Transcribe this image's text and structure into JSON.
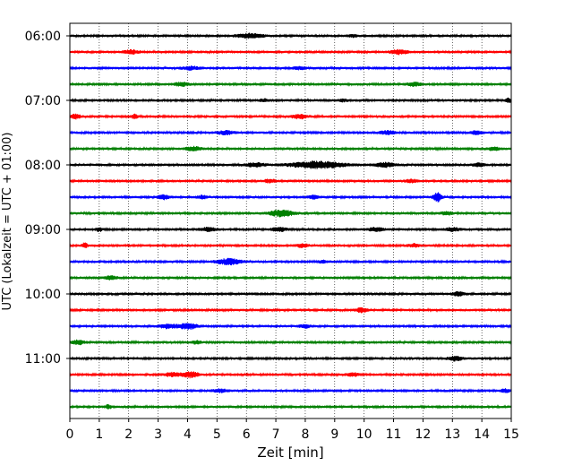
{
  "chart_data": {
    "type": "line",
    "title": "",
    "xlabel": "Zeit  [min]",
    "ylabel": "UTC (Lokalzeit = UTC + 01:00)",
    "xlim": [
      0,
      15
    ],
    "x_ticks": [
      "0",
      "1",
      "2",
      "3",
      "4",
      "5",
      "6",
      "7",
      "8",
      "9",
      "10",
      "11",
      "12",
      "13",
      "14",
      "15"
    ],
    "y_ticks": [
      "06:00",
      "07:00",
      "08:00",
      "09:00",
      "10:00",
      "11:00"
    ],
    "start_time": "06:00",
    "row_minutes": 15,
    "grid": "vertical dotted",
    "line_colors": [
      "#000000",
      "#ff0000",
      "#0000ff",
      "#008000"
    ],
    "rows": [
      {
        "time": "06:00",
        "color": "#000000",
        "events": [
          [
            6.1,
            0.9,
            2.2
          ],
          [
            9.6,
            0.3,
            1.2
          ]
        ]
      },
      {
        "time": "06:15",
        "color": "#ff0000",
        "events": [
          [
            2.1,
            0.5,
            2.0
          ],
          [
            11.2,
            0.6,
            2.2
          ]
        ]
      },
      {
        "time": "06:30",
        "color": "#0000ff",
        "events": [
          [
            4.1,
            0.6,
            1.6
          ],
          [
            7.8,
            0.4,
            1.3
          ]
        ]
      },
      {
        "time": "06:45",
        "color": "#008000",
        "events": [
          [
            3.8,
            0.5,
            1.8
          ],
          [
            11.7,
            0.5,
            1.8
          ]
        ]
      },
      {
        "time": "07:00",
        "color": "#000000",
        "events": [
          [
            6.6,
            0.3,
            1.2
          ],
          [
            9.3,
            0.3,
            1.2
          ],
          [
            14.9,
            0.2,
            2.0
          ]
        ]
      },
      {
        "time": "07:15",
        "color": "#ff0000",
        "events": [
          [
            0.2,
            0.3,
            2.5
          ],
          [
            2.2,
            0.2,
            2.0
          ],
          [
            7.8,
            0.5,
            2.2
          ]
        ]
      },
      {
        "time": "07:30",
        "color": "#0000ff",
        "events": [
          [
            5.3,
            0.5,
            2.0
          ],
          [
            10.8,
            0.5,
            1.8
          ],
          [
            13.8,
            0.4,
            1.6
          ]
        ]
      },
      {
        "time": "07:45",
        "color": "#008000",
        "events": [
          [
            4.2,
            0.5,
            2.0
          ],
          [
            14.4,
            0.4,
            1.6
          ]
        ]
      },
      {
        "time": "08:00",
        "color": "#000000",
        "events": [
          [
            6.3,
            0.6,
            2.0
          ],
          [
            8.4,
            1.8,
            3.5
          ],
          [
            10.7,
            0.7,
            2.2
          ],
          [
            13.9,
            0.4,
            1.6
          ]
        ]
      },
      {
        "time": "08:15",
        "color": "#ff0000",
        "events": [
          [
            6.8,
            0.4,
            1.6
          ],
          [
            11.6,
            0.4,
            1.6
          ]
        ]
      },
      {
        "time": "08:30",
        "color": "#0000ff",
        "events": [
          [
            3.2,
            0.4,
            2.2
          ],
          [
            4.5,
            0.3,
            1.6
          ],
          [
            8.3,
            0.4,
            1.6
          ],
          [
            12.5,
            0.3,
            4.5
          ]
        ]
      },
      {
        "time": "08:45",
        "color": "#008000",
        "events": [
          [
            7.2,
            0.8,
            3.5
          ],
          [
            12.8,
            0.4,
            1.6
          ]
        ]
      },
      {
        "time": "09:00",
        "color": "#000000",
        "events": [
          [
            1.0,
            0.2,
            2.0
          ],
          [
            4.7,
            0.5,
            1.8
          ],
          [
            7.1,
            0.5,
            2.0
          ],
          [
            10.4,
            0.5,
            1.8
          ],
          [
            13.0,
            0.5,
            1.6
          ]
        ]
      },
      {
        "time": "09:15",
        "color": "#ff0000",
        "events": [
          [
            0.5,
            0.2,
            2.5
          ],
          [
            7.9,
            0.4,
            1.6
          ],
          [
            11.7,
            0.4,
            1.6
          ]
        ]
      },
      {
        "time": "09:30",
        "color": "#0000ff",
        "events": [
          [
            5.4,
            0.8,
            3.0
          ],
          [
            8.6,
            0.3,
            1.2
          ]
        ]
      },
      {
        "time": "09:45",
        "color": "#008000",
        "events": [
          [
            1.4,
            0.4,
            2.0
          ]
        ]
      },
      {
        "time": "10:00",
        "color": "#000000",
        "events": [
          [
            13.2,
            0.4,
            2.0
          ]
        ]
      },
      {
        "time": "10:15",
        "color": "#ff0000",
        "events": [
          [
            9.9,
            0.4,
            2.2
          ]
        ]
      },
      {
        "time": "10:30",
        "color": "#0000ff",
        "events": [
          [
            3.3,
            0.5,
            2.0
          ],
          [
            4.0,
            0.7,
            3.0
          ],
          [
            8.0,
            0.4,
            1.6
          ]
        ]
      },
      {
        "time": "10:45",
        "color": "#008000",
        "events": [
          [
            0.3,
            0.4,
            2.2
          ],
          [
            4.3,
            0.3,
            1.4
          ]
        ]
      },
      {
        "time": "11:00",
        "color": "#000000",
        "events": [
          [
            13.1,
            0.5,
            2.2
          ]
        ]
      },
      {
        "time": "11:15",
        "color": "#ff0000",
        "events": [
          [
            3.5,
            0.5,
            2.0
          ],
          [
            4.1,
            0.5,
            3.0
          ],
          [
            9.6,
            0.4,
            1.8
          ]
        ]
      },
      {
        "time": "11:30",
        "color": "#0000ff",
        "events": [
          [
            5.1,
            0.5,
            1.6
          ],
          [
            14.8,
            0.3,
            1.6
          ]
        ]
      },
      {
        "time": "11:45",
        "color": "#008000",
        "events": [
          [
            1.3,
            0.2,
            2.2
          ]
        ]
      }
    ]
  }
}
